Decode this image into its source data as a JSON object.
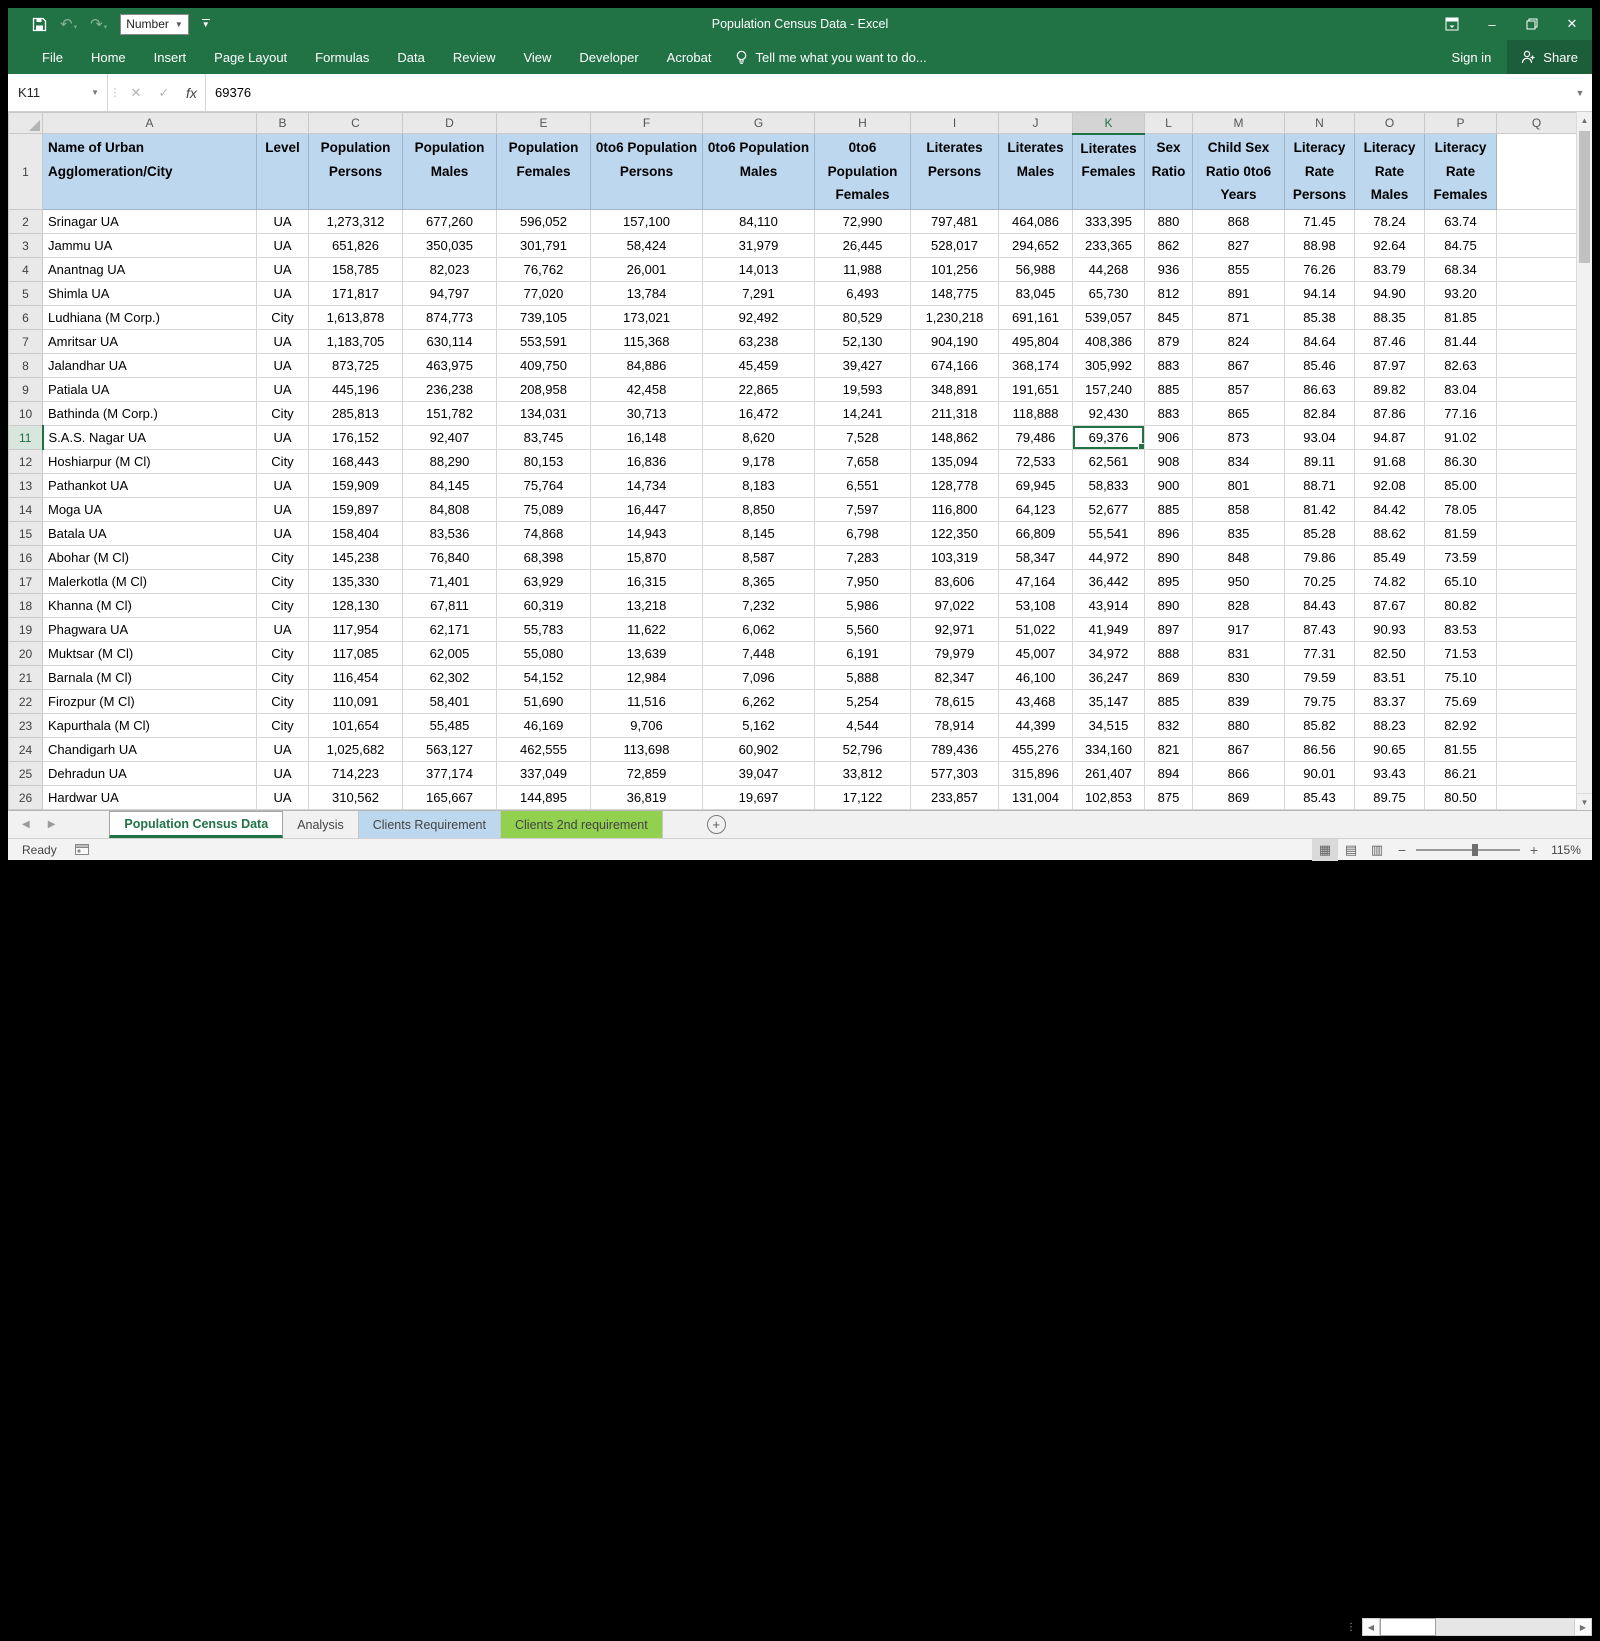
{
  "colors": {
    "accent": "#217346",
    "header_fill": "#BDD7EE",
    "tab_blue": "#BDD7EE",
    "tab_green": "#92D050"
  },
  "titlebar": {
    "title": "Population Census Data - Excel",
    "quick_access": {
      "number_dropdown": "Number"
    }
  },
  "ribbon": {
    "tabs": [
      "File",
      "Home",
      "Insert",
      "Page Layout",
      "Formulas",
      "Data",
      "Review",
      "View",
      "Developer",
      "Acrobat"
    ],
    "tell_me": "Tell me what you want to do...",
    "sign_in": "Sign in",
    "share": "Share"
  },
  "formula_bar": {
    "name_box": "K11",
    "fx": "fx",
    "value": "69376"
  },
  "grid": {
    "column_letters": [
      "A",
      "B",
      "C",
      "D",
      "E",
      "F",
      "G",
      "H",
      "I",
      "J",
      "K",
      "L",
      "M",
      "N",
      "O",
      "P",
      "Q"
    ],
    "selected_column": "K",
    "selected_row": 11,
    "selected_cell": "K11",
    "header_row": [
      "Name of Urban Agglomeration/City",
      "Level",
      "Population Persons",
      "Population Males",
      "Population Females",
      "0to6 Population Persons",
      "0to6 Population Males",
      "0to6 Population Females",
      "Literates Persons",
      "Literates Males",
      "Literates Females",
      "Sex Ratio",
      "Child Sex Ratio 0to6 Years",
      "Literacy Rate Persons",
      "Literacy Rate Males",
      "Literacy Rate Females"
    ],
    "rows": [
      {
        "n": 2,
        "cells": [
          "Srinagar UA",
          "UA",
          "1,273,312",
          "677,260",
          "596,052",
          "157,100",
          "84,110",
          "72,990",
          "797,481",
          "464,086",
          "333,395",
          "880",
          "868",
          "71.45",
          "78.24",
          "63.74"
        ]
      },
      {
        "n": 3,
        "cells": [
          "Jammu UA",
          "UA",
          "651,826",
          "350,035",
          "301,791",
          "58,424",
          "31,979",
          "26,445",
          "528,017",
          "294,652",
          "233,365",
          "862",
          "827",
          "88.98",
          "92.64",
          "84.75"
        ]
      },
      {
        "n": 4,
        "cells": [
          "Anantnag UA",
          "UA",
          "158,785",
          "82,023",
          "76,762",
          "26,001",
          "14,013",
          "11,988",
          "101,256",
          "56,988",
          "44,268",
          "936",
          "855",
          "76.26",
          "83.79",
          "68.34"
        ]
      },
      {
        "n": 5,
        "cells": [
          "Shimla UA",
          "UA",
          "171,817",
          "94,797",
          "77,020",
          "13,784",
          "7,291",
          "6,493",
          "148,775",
          "83,045",
          "65,730",
          "812",
          "891",
          "94.14",
          "94.90",
          "93.20"
        ]
      },
      {
        "n": 6,
        "cells": [
          "Ludhiana (M Corp.)",
          "City",
          "1,613,878",
          "874,773",
          "739,105",
          "173,021",
          "92,492",
          "80,529",
          "1,230,218",
          "691,161",
          "539,057",
          "845",
          "871",
          "85.38",
          "88.35",
          "81.85"
        ]
      },
      {
        "n": 7,
        "cells": [
          "Amritsar UA",
          "UA",
          "1,183,705",
          "630,114",
          "553,591",
          "115,368",
          "63,238",
          "52,130",
          "904,190",
          "495,804",
          "408,386",
          "879",
          "824",
          "84.64",
          "87.46",
          "81.44"
        ]
      },
      {
        "n": 8,
        "cells": [
          "Jalandhar UA",
          "UA",
          "873,725",
          "463,975",
          "409,750",
          "84,886",
          "45,459",
          "39,427",
          "674,166",
          "368,174",
          "305,992",
          "883",
          "867",
          "85.46",
          "87.97",
          "82.63"
        ]
      },
      {
        "n": 9,
        "cells": [
          "Patiala UA",
          "UA",
          "445,196",
          "236,238",
          "208,958",
          "42,458",
          "22,865",
          "19,593",
          "348,891",
          "191,651",
          "157,240",
          "885",
          "857",
          "86.63",
          "89.82",
          "83.04"
        ]
      },
      {
        "n": 10,
        "cells": [
          "Bathinda (M Corp.)",
          "City",
          "285,813",
          "151,782",
          "134,031",
          "30,713",
          "16,472",
          "14,241",
          "211,318",
          "118,888",
          "92,430",
          "883",
          "865",
          "82.84",
          "87.86",
          "77.16"
        ]
      },
      {
        "n": 11,
        "cells": [
          "S.A.S. Nagar UA",
          "UA",
          "176,152",
          "92,407",
          "83,745",
          "16,148",
          "8,620",
          "7,528",
          "148,862",
          "79,486",
          "69,376",
          "906",
          "873",
          "93.04",
          "94.87",
          "91.02"
        ]
      },
      {
        "n": 12,
        "cells": [
          "Hoshiarpur (M Cl)",
          "City",
          "168,443",
          "88,290",
          "80,153",
          "16,836",
          "9,178",
          "7,658",
          "135,094",
          "72,533",
          "62,561",
          "908",
          "834",
          "89.11",
          "91.68",
          "86.30"
        ]
      },
      {
        "n": 13,
        "cells": [
          "Pathankot UA",
          "UA",
          "159,909",
          "84,145",
          "75,764",
          "14,734",
          "8,183",
          "6,551",
          "128,778",
          "69,945",
          "58,833",
          "900",
          "801",
          "88.71",
          "92.08",
          "85.00"
        ]
      },
      {
        "n": 14,
        "cells": [
          "Moga UA",
          "UA",
          "159,897",
          "84,808",
          "75,089",
          "16,447",
          "8,850",
          "7,597",
          "116,800",
          "64,123",
          "52,677",
          "885",
          "858",
          "81.42",
          "84.42",
          "78.05"
        ]
      },
      {
        "n": 15,
        "cells": [
          "Batala UA",
          "UA",
          "158,404",
          "83,536",
          "74,868",
          "14,943",
          "8,145",
          "6,798",
          "122,350",
          "66,809",
          "55,541",
          "896",
          "835",
          "85.28",
          "88.62",
          "81.59"
        ]
      },
      {
        "n": 16,
        "cells": [
          "Abohar (M Cl)",
          "City",
          "145,238",
          "76,840",
          "68,398",
          "15,870",
          "8,587",
          "7,283",
          "103,319",
          "58,347",
          "44,972",
          "890",
          "848",
          "79.86",
          "85.49",
          "73.59"
        ]
      },
      {
        "n": 17,
        "cells": [
          "Malerkotla (M Cl)",
          "City",
          "135,330",
          "71,401",
          "63,929",
          "16,315",
          "8,365",
          "7,950",
          "83,606",
          "47,164",
          "36,442",
          "895",
          "950",
          "70.25",
          "74.82",
          "65.10"
        ]
      },
      {
        "n": 18,
        "cells": [
          "Khanna (M Cl)",
          "City",
          "128,130",
          "67,811",
          "60,319",
          "13,218",
          "7,232",
          "5,986",
          "97,022",
          "53,108",
          "43,914",
          "890",
          "828",
          "84.43",
          "87.67",
          "80.82"
        ]
      },
      {
        "n": 19,
        "cells": [
          "Phagwara UA",
          "UA",
          "117,954",
          "62,171",
          "55,783",
          "11,622",
          "6,062",
          "5,560",
          "92,971",
          "51,022",
          "41,949",
          "897",
          "917",
          "87.43",
          "90.93",
          "83.53"
        ]
      },
      {
        "n": 20,
        "cells": [
          "Muktsar (M Cl)",
          "City",
          "117,085",
          "62,005",
          "55,080",
          "13,639",
          "7,448",
          "6,191",
          "79,979",
          "45,007",
          "34,972",
          "888",
          "831",
          "77.31",
          "82.50",
          "71.53"
        ]
      },
      {
        "n": 21,
        "cells": [
          "Barnala (M Cl)",
          "City",
          "116,454",
          "62,302",
          "54,152",
          "12,984",
          "7,096",
          "5,888",
          "82,347",
          "46,100",
          "36,247",
          "869",
          "830",
          "79.59",
          "83.51",
          "75.10"
        ]
      },
      {
        "n": 22,
        "cells": [
          "Firozpur (M Cl)",
          "City",
          "110,091",
          "58,401",
          "51,690",
          "11,516",
          "6,262",
          "5,254",
          "78,615",
          "43,468",
          "35,147",
          "885",
          "839",
          "79.75",
          "83.37",
          "75.69"
        ]
      },
      {
        "n": 23,
        "cells": [
          "Kapurthala (M Cl)",
          "City",
          "101,654",
          "55,485",
          "46,169",
          "9,706",
          "5,162",
          "4,544",
          "78,914",
          "44,399",
          "34,515",
          "832",
          "880",
          "85.82",
          "88.23",
          "82.92"
        ]
      },
      {
        "n": 24,
        "cells": [
          "Chandigarh UA",
          "UA",
          "1,025,682",
          "563,127",
          "462,555",
          "113,698",
          "60,902",
          "52,796",
          "789,436",
          "455,276",
          "334,160",
          "821",
          "867",
          "86.56",
          "90.65",
          "81.55"
        ]
      },
      {
        "n": 25,
        "cells": [
          "Dehradun UA",
          "UA",
          "714,223",
          "377,174",
          "337,049",
          "72,859",
          "39,047",
          "33,812",
          "577,303",
          "315,896",
          "261,407",
          "894",
          "866",
          "90.01",
          "93.43",
          "86.21"
        ]
      },
      {
        "n": 26,
        "cells": [
          "Hardwar UA",
          "UA",
          "310,562",
          "165,667",
          "144,895",
          "36,819",
          "19,697",
          "17,122",
          "233,857",
          "131,004",
          "102,853",
          "875",
          "869",
          "85.43",
          "89.75",
          "80.50"
        ]
      }
    ]
  },
  "sheet_tabs": {
    "tabs": [
      {
        "label": "Population Census Data",
        "state": "active",
        "fill": ""
      },
      {
        "label": "Analysis",
        "state": "normal",
        "fill": ""
      },
      {
        "label": "Clients Requirement",
        "state": "normal",
        "fill": "#BDD7EE"
      },
      {
        "label": "Clients 2nd requirement",
        "state": "normal",
        "fill": "#92D050"
      }
    ]
  },
  "status_bar": {
    "mode": "Ready",
    "zoom": "115%"
  }
}
